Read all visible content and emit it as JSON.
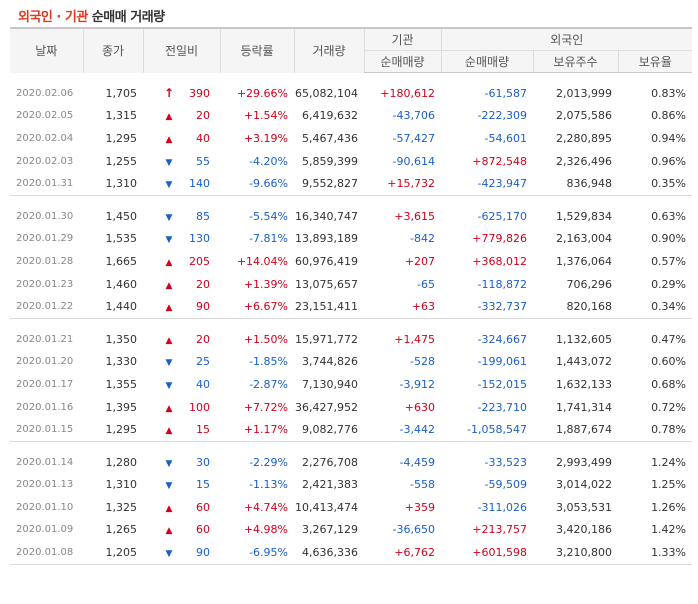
{
  "title": {
    "part1": "외국인",
    "dot": " · ",
    "part2": "기관",
    "part3": " 순매매 거래량"
  },
  "headers": {
    "date": "날짜",
    "close": "종가",
    "change": "전일비",
    "rate": "등락률",
    "volume": "거래량",
    "inst": "기관",
    "foreign": "외국인",
    "inst_net": "순매매량",
    "foreign_net": "순매매량",
    "holdings": "보유주수",
    "ratio": "보유율"
  },
  "groups": [
    [
      {
        "date": "2020.02.06",
        "close": "1,705",
        "dir": "upper",
        "change": "390",
        "rate": "+29.66%",
        "volume": "65,082,104",
        "inst": "+180,612",
        "foreign": "-61,587",
        "holdings": "2,013,999",
        "ratio": "0.83%"
      },
      {
        "date": "2020.02.05",
        "close": "1,315",
        "dir": "up",
        "change": "20",
        "rate": "+1.54%",
        "volume": "6,419,632",
        "inst": "-43,706",
        "foreign": "-222,309",
        "holdings": "2,075,586",
        "ratio": "0.86%"
      },
      {
        "date": "2020.02.04",
        "close": "1,295",
        "dir": "up",
        "change": "40",
        "rate": "+3.19%",
        "volume": "5,467,436",
        "inst": "-57,427",
        "foreign": "-54,601",
        "holdings": "2,280,895",
        "ratio": "0.94%"
      },
      {
        "date": "2020.02.03",
        "close": "1,255",
        "dir": "down",
        "change": "55",
        "rate": "-4.20%",
        "volume": "5,859,399",
        "inst": "-90,614",
        "foreign": "+872,548",
        "holdings": "2,326,496",
        "ratio": "0.96%"
      },
      {
        "date": "2020.01.31",
        "close": "1,310",
        "dir": "down",
        "change": "140",
        "rate": "-9.66%",
        "volume": "9,552,827",
        "inst": "+15,732",
        "foreign": "-423,947",
        "holdings": "836,948",
        "ratio": "0.35%"
      }
    ],
    [
      {
        "date": "2020.01.30",
        "close": "1,450",
        "dir": "down",
        "change": "85",
        "rate": "-5.54%",
        "volume": "16,340,747",
        "inst": "+3,615",
        "foreign": "-625,170",
        "holdings": "1,529,834",
        "ratio": "0.63%"
      },
      {
        "date": "2020.01.29",
        "close": "1,535",
        "dir": "down",
        "change": "130",
        "rate": "-7.81%",
        "volume": "13,893,189",
        "inst": "-842",
        "foreign": "+779,826",
        "holdings": "2,163,004",
        "ratio": "0.90%"
      },
      {
        "date": "2020.01.28",
        "close": "1,665",
        "dir": "up",
        "change": "205",
        "rate": "+14.04%",
        "volume": "60,976,419",
        "inst": "+207",
        "foreign": "+368,012",
        "holdings": "1,376,064",
        "ratio": "0.57%"
      },
      {
        "date": "2020.01.23",
        "close": "1,460",
        "dir": "up",
        "change": "20",
        "rate": "+1.39%",
        "volume": "13,075,657",
        "inst": "-65",
        "foreign": "-118,872",
        "holdings": "706,296",
        "ratio": "0.29%"
      },
      {
        "date": "2020.01.22",
        "close": "1,440",
        "dir": "up",
        "change": "90",
        "rate": "+6.67%",
        "volume": "23,151,411",
        "inst": "+63",
        "foreign": "-332,737",
        "holdings": "820,168",
        "ratio": "0.34%"
      }
    ],
    [
      {
        "date": "2020.01.21",
        "close": "1,350",
        "dir": "up",
        "change": "20",
        "rate": "+1.50%",
        "volume": "15,971,772",
        "inst": "+1,475",
        "foreign": "-324,667",
        "holdings": "1,132,605",
        "ratio": "0.47%"
      },
      {
        "date": "2020.01.20",
        "close": "1,330",
        "dir": "down",
        "change": "25",
        "rate": "-1.85%",
        "volume": "3,744,826",
        "inst": "-528",
        "foreign": "-199,061",
        "holdings": "1,443,072",
        "ratio": "0.60%"
      },
      {
        "date": "2020.01.17",
        "close": "1,355",
        "dir": "down",
        "change": "40",
        "rate": "-2.87%",
        "volume": "7,130,940",
        "inst": "-3,912",
        "foreign": "-152,015",
        "holdings": "1,632,133",
        "ratio": "0.68%"
      },
      {
        "date": "2020.01.16",
        "close": "1,395",
        "dir": "up",
        "change": "100",
        "rate": "+7.72%",
        "volume": "36,427,952",
        "inst": "+630",
        "foreign": "-223,710",
        "holdings": "1,741,314",
        "ratio": "0.72%"
      },
      {
        "date": "2020.01.15",
        "close": "1,295",
        "dir": "up",
        "change": "15",
        "rate": "+1.17%",
        "volume": "9,082,776",
        "inst": "-3,442",
        "foreign": "-1,058,547",
        "holdings": "1,887,674",
        "ratio": "0.78%"
      }
    ],
    [
      {
        "date": "2020.01.14",
        "close": "1,280",
        "dir": "down",
        "change": "30",
        "rate": "-2.29%",
        "volume": "2,276,708",
        "inst": "-4,459",
        "foreign": "-33,523",
        "holdings": "2,993,499",
        "ratio": "1.24%"
      },
      {
        "date": "2020.01.13",
        "close": "1,310",
        "dir": "down",
        "change": "15",
        "rate": "-1.13%",
        "volume": "2,421,383",
        "inst": "-558",
        "foreign": "-59,509",
        "holdings": "3,014,022",
        "ratio": "1.25%"
      },
      {
        "date": "2020.01.10",
        "close": "1,325",
        "dir": "up",
        "change": "60",
        "rate": "+4.74%",
        "volume": "10,413,474",
        "inst": "+359",
        "foreign": "-311,026",
        "holdings": "3,053,531",
        "ratio": "1.26%"
      },
      {
        "date": "2020.01.09",
        "close": "1,265",
        "dir": "up",
        "change": "60",
        "rate": "+4.98%",
        "volume": "3,267,129",
        "inst": "-36,650",
        "foreign": "+213,757",
        "holdings": "3,420,186",
        "ratio": "1.42%"
      },
      {
        "date": "2020.01.08",
        "close": "1,205",
        "dir": "down",
        "change": "90",
        "rate": "-6.95%",
        "volume": "4,636,336",
        "inst": "+6,762",
        "foreign": "+601,598",
        "holdings": "3,210,800",
        "ratio": "1.33%"
      }
    ]
  ],
  "colors": {
    "up": "#d0021b",
    "down": "#1b5fc7",
    "title_accent": "#e2391f"
  },
  "icons": {
    "upper": "upper-limit-arrow-icon",
    "up": "up-triangle-icon",
    "down": "down-triangle-icon"
  }
}
